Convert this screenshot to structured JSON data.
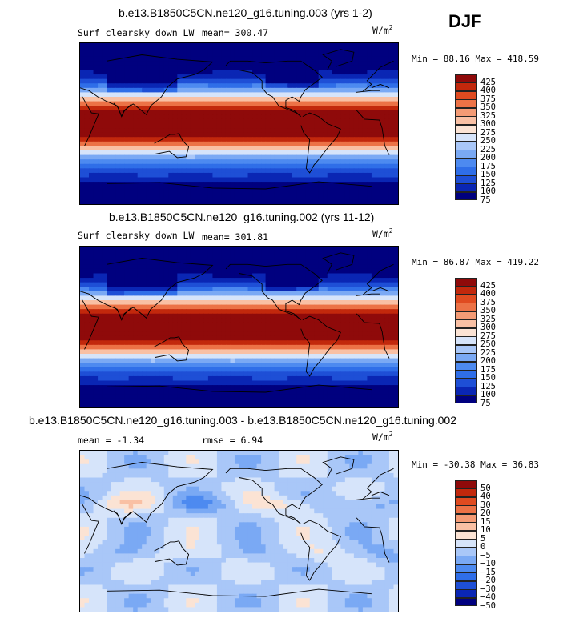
{
  "season": "DJF",
  "units_main": "W/m",
  "units_sup": "2",
  "chart_data": [
    {
      "type": "heatmap",
      "title": "b.e13.B1850C5CN.ne120_g16.tuning.003 (yrs 1-2)",
      "variable": "Surf clearsky down LW",
      "mean_text": "mean= 300.47",
      "minmax_text": "Min =  88.16 Max = 418.59",
      "min": 88.16,
      "max": 418.59,
      "levels": [
        75,
        100,
        125,
        150,
        175,
        200,
        225,
        250,
        275,
        300,
        325,
        350,
        375,
        400,
        425
      ],
      "colorbar_labels": [
        "425",
        "400",
        "375",
        "350",
        "325",
        "300",
        "275",
        "250",
        "225",
        "200",
        "175",
        "150",
        "125",
        "100",
        "75"
      ],
      "colors": [
        "#00007f",
        "#0a26b4",
        "#1e4fd6",
        "#2f6ee8",
        "#4d8af0",
        "#7aa9f4",
        "#a9c7f8",
        "#d6e4fa",
        "#fbe3d4",
        "#f9c0a4",
        "#f49b75",
        "#ec7246",
        "#e04b20",
        "#c2280c",
        "#8f0a0a"
      ],
      "palette": "cold-to-warm"
    },
    {
      "type": "heatmap",
      "title": "b.e13.B1850C5CN.ne120_g16.tuning.002 (yrs 11-12)",
      "variable": "Surf clearsky down LW",
      "mean_text": "mean= 301.81",
      "minmax_text": "Min =  86.87 Max = 419.22",
      "min": 86.87,
      "max": 419.22,
      "levels": [
        75,
        100,
        125,
        150,
        175,
        200,
        225,
        250,
        275,
        300,
        325,
        350,
        375,
        400,
        425
      ],
      "colorbar_labels": [
        "425",
        "400",
        "375",
        "350",
        "325",
        "300",
        "275",
        "250",
        "225",
        "200",
        "175",
        "150",
        "125",
        "100",
        "75"
      ],
      "colors": [
        "#00007f",
        "#0a26b4",
        "#1e4fd6",
        "#2f6ee8",
        "#4d8af0",
        "#7aa9f4",
        "#a9c7f8",
        "#d6e4fa",
        "#fbe3d4",
        "#f9c0a4",
        "#f49b75",
        "#ec7246",
        "#e04b20",
        "#c2280c",
        "#8f0a0a"
      ],
      "palette": "cold-to-warm"
    },
    {
      "type": "heatmap",
      "title": "b.e13.B1850C5CN.ne120_g16.tuning.003 - b.e13.B1850C5CN.ne120_g16.tuning.002",
      "variable": "",
      "mean_text": "mean =   -1.34",
      "rmse_text": "rmse =    6.94",
      "minmax_text": "Min = -30.38 Max =  36.83",
      "min": -30.38,
      "max": 36.83,
      "levels": [
        -50,
        -40,
        -30,
        -20,
        -15,
        -10,
        -5,
        0,
        5,
        10,
        15,
        20,
        30,
        40,
        50
      ],
      "colorbar_labels": [
        "50",
        "40",
        "30",
        "20",
        "15",
        "10",
        "5",
        "0",
        "−5",
        "−10",
        "−15",
        "−20",
        "−30",
        "−40",
        "−50"
      ],
      "colors": [
        "#00007f",
        "#0a26b4",
        "#1e4fd6",
        "#2f6ee8",
        "#4d8af0",
        "#7aa9f4",
        "#a9c7f8",
        "#d6e4fa",
        "#fbe3d4",
        "#f9c0a4",
        "#f49b75",
        "#ec7246",
        "#e04b20",
        "#c2280c",
        "#8f0a0a"
      ],
      "palette": "difference"
    }
  ]
}
